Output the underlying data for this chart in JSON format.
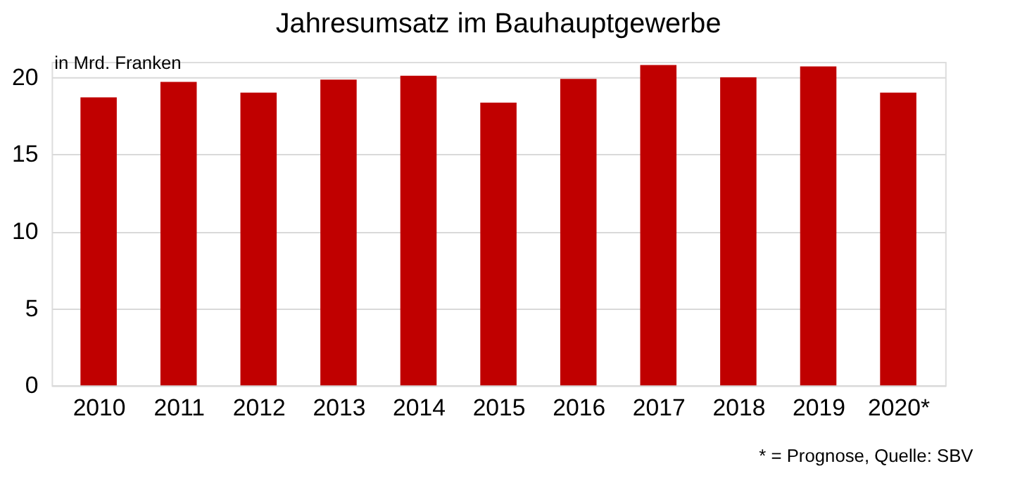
{
  "chart_data": {
    "type": "bar",
    "title": "Jahresumsatz im Bauhauptgewerbe",
    "categories": [
      "2010",
      "2011",
      "2012",
      "2013",
      "2014",
      "2015",
      "2016",
      "2017",
      "2018",
      "2019",
      "2020*"
    ],
    "values": [
      18.7,
      19.7,
      19.0,
      19.85,
      20.1,
      18.35,
      19.9,
      20.8,
      20.0,
      20.7,
      19.0
    ],
    "color": "#c00000",
    "ylim": [
      0,
      21
    ],
    "yticks": [
      0,
      5,
      10,
      15,
      20
    ],
    "grid": "y",
    "annotations": [
      "in Mrd. Franken",
      "* = Prognose, Quelle: SBV"
    ]
  }
}
